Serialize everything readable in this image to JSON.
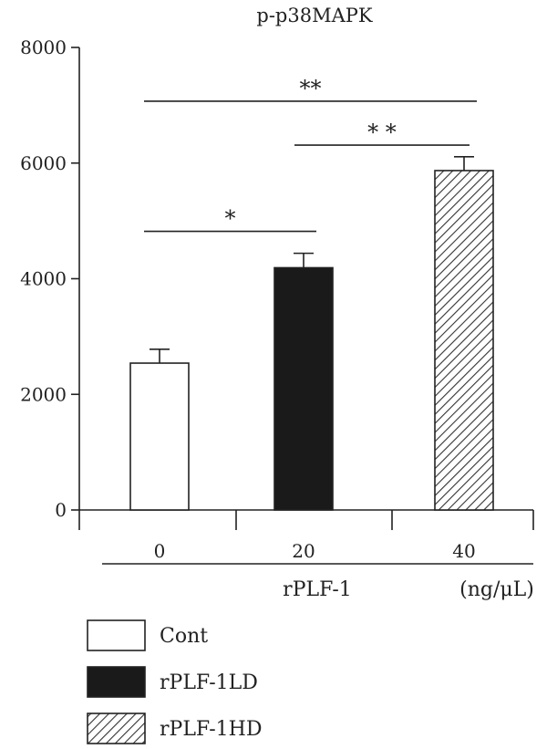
{
  "chart_data": {
    "type": "bar",
    "title": "p-p38MAPK",
    "categories": [
      "0",
      "20",
      "40"
    ],
    "series": [
      {
        "values": [
          2540,
          4190,
          5870
        ],
        "errors": [
          240,
          250,
          240
        ],
        "legend": [
          "Cont",
          "rPLF-1LD",
          "rPLF-1HD"
        ],
        "fills": [
          "white",
          "black",
          "hatch"
        ]
      }
    ],
    "ylim": [
      0,
      8000
    ],
    "yticks": [
      "0",
      "2000",
      "4000",
      "6000",
      "8000"
    ],
    "xgroup_label": "rPLF-1",
    "xunit_label": "(ng/μL)",
    "significance": [
      {
        "from": 0,
        "to": 1,
        "label": "*",
        "y": 4820
      },
      {
        "from": 1,
        "to": 2,
        "label": "* *",
        "y": 6310
      },
      {
        "from": 0,
        "to": 2,
        "label": "**",
        "y": 7070
      }
    ],
    "legend_position": "bottom-left",
    "grid": false
  },
  "colors": {
    "axis": "#222222",
    "bar_light": "#ffffff",
    "bar_dark": "#1a1a1a",
    "hatch": "#333333"
  }
}
